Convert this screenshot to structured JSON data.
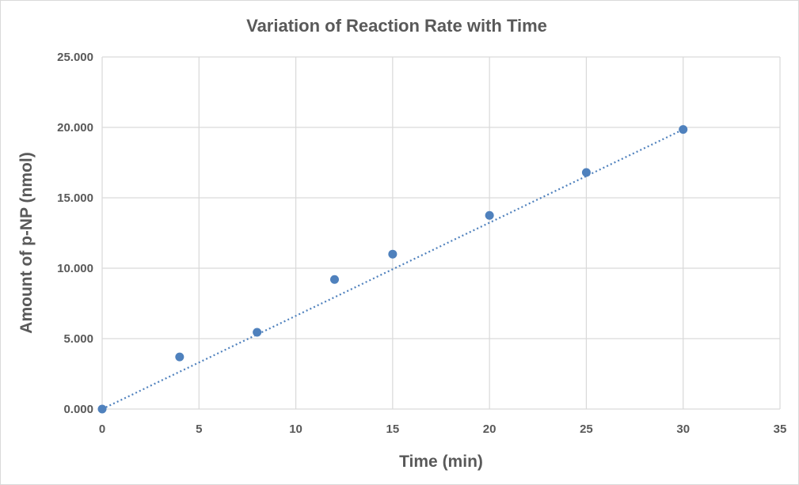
{
  "chart_data": {
    "type": "scatter",
    "title": "Variation of Reaction Rate with Time",
    "xlabel": "Time (min)",
    "ylabel": "Amount of p-NP (nmol)",
    "xlim": [
      0,
      35
    ],
    "ylim": [
      0,
      25
    ],
    "x_ticks": [
      0,
      5,
      10,
      15,
      20,
      25,
      30,
      35
    ],
    "y_ticks": [
      0,
      5,
      10,
      15,
      20,
      25
    ],
    "x_tick_labels": [
      "0",
      "5",
      "10",
      "15",
      "20",
      "25",
      "30",
      "35"
    ],
    "y_tick_labels": [
      "0.000",
      "5.000",
      "10.000",
      "15.000",
      "20.000",
      "25.000"
    ],
    "grid": true,
    "legend": "none",
    "series": [
      {
        "x": [
          0,
          4,
          8,
          12,
          15,
          20,
          25,
          30
        ],
        "y": [
          0,
          3.7,
          5.45,
          9.2,
          11.0,
          13.75,
          16.8,
          19.85
        ],
        "marker": "circle",
        "color": "#4f81bd"
      }
    ],
    "trendline": {
      "type": "linear",
      "style": "dotted",
      "x": [
        0,
        30
      ],
      "y": [
        0,
        19.85
      ],
      "color": "#4f81bd"
    }
  }
}
